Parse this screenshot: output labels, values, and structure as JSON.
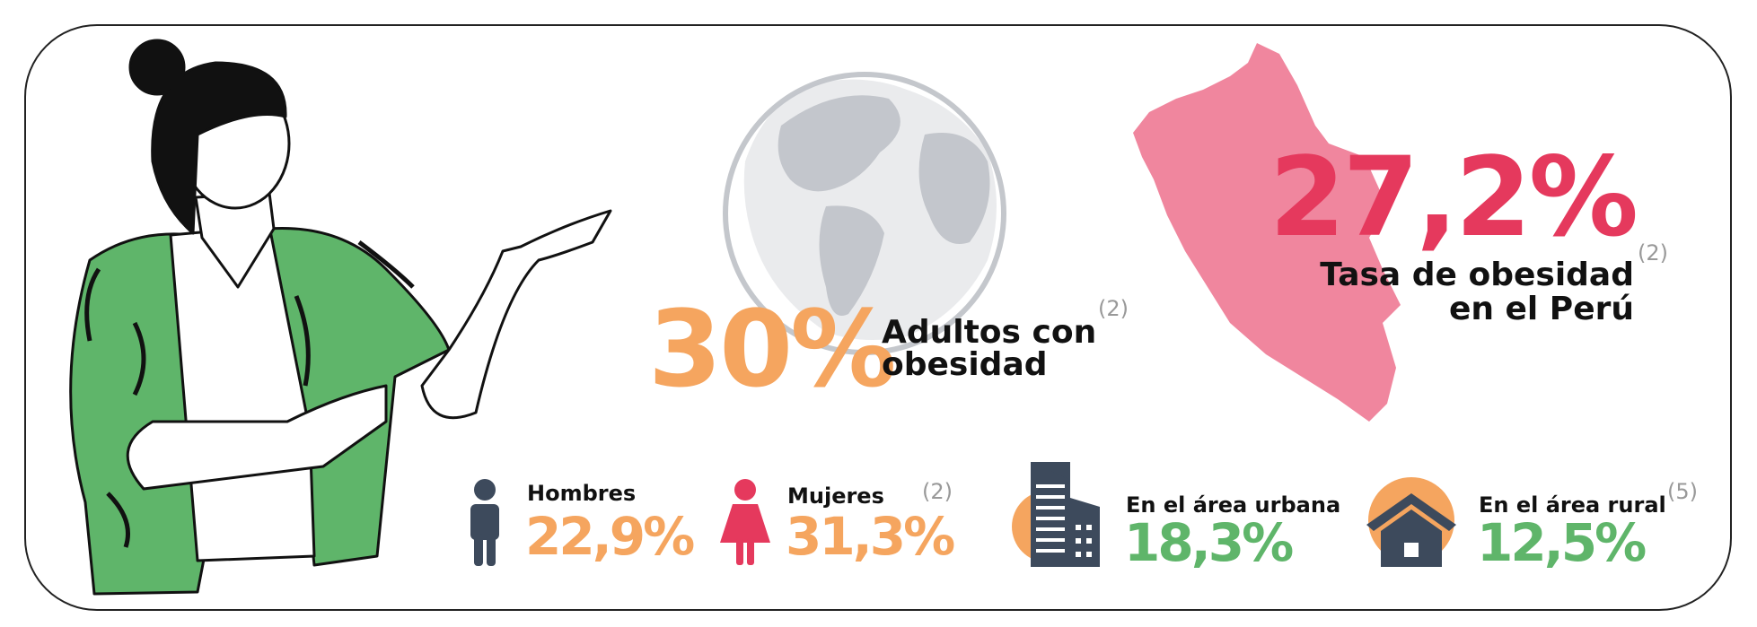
{
  "world": {
    "value": "30%",
    "label_line1": "Adultos con",
    "label_line2": "obesidad",
    "ref": "(2)"
  },
  "peru": {
    "value": "27,2%",
    "ref": "(2)",
    "label_line1": "Tasa de obesidad",
    "label_line2": "en el Perú"
  },
  "sex": {
    "ref": "(2)",
    "items": [
      {
        "label": "Hombres",
        "value": "22,9%"
      },
      {
        "label": "Mujeres",
        "value": "31,3%"
      }
    ]
  },
  "area": {
    "ref": "(5)",
    "items": [
      {
        "label": "En el área urbana",
        "value": "18,3%"
      },
      {
        "label": "En el área rural",
        "value": "12,5%"
      }
    ]
  }
}
